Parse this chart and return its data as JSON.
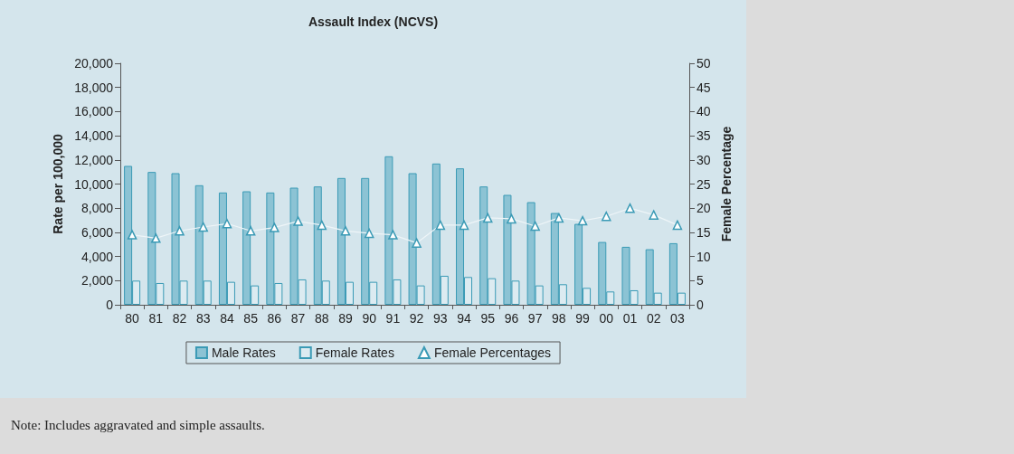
{
  "chart_data": {
    "type": "bar",
    "title": "Assault Index (NCVS)",
    "ylabel": "Rate per 100,000",
    "y2label": "Female Percentage",
    "categories": [
      "80",
      "81",
      "82",
      "83",
      "84",
      "85",
      "86",
      "87",
      "88",
      "89",
      "90",
      "91",
      "92",
      "93",
      "94",
      "95",
      "96",
      "97",
      "98",
      "99",
      "00",
      "01",
      "02",
      "03"
    ],
    "series": [
      {
        "name": "Male Rates",
        "color": "#8cc3d4",
        "values": [
          11500,
          11000,
          10900,
          9900,
          9300,
          9400,
          9300,
          9700,
          9800,
          10500,
          10500,
          12300,
          10900,
          11700,
          11300,
          9800,
          9100,
          8500,
          7600,
          6700,
          5200,
          4800,
          4600,
          5100
        ]
      },
      {
        "name": "Female Rates",
        "color": "#dcebf1",
        "values": [
          2000,
          1800,
          2000,
          2000,
          1900,
          1600,
          1800,
          2100,
          2000,
          1900,
          1900,
          2100,
          1600,
          2400,
          2300,
          2200,
          2000,
          1600,
          1700,
          1400,
          1100,
          1200,
          1000,
          1000
        ]
      },
      {
        "name": "Female Percentages",
        "type": "line",
        "axis": "y2",
        "color": "#3a9ab5",
        "marker": "triangle",
        "values": [
          14.5,
          13.8,
          15.3,
          16.1,
          16.8,
          15.3,
          16,
          17.3,
          16.5,
          15.3,
          14.8,
          14.5,
          12.8,
          16.5,
          16.5,
          18,
          17.8,
          16.3,
          18,
          17.4,
          18.3,
          20,
          18.6,
          16.5
        ]
      }
    ],
    "ylim": [
      0,
      20000
    ],
    "yticks": [
      0,
      {
        "value": 2000,
        "label": "2,000"
      },
      {
        "value": 4000,
        "label": "4,000"
      },
      {
        "value": 6000,
        "label": "6,000"
      },
      {
        "value": 8000,
        "label": "8,000"
      },
      {
        "value": 10000,
        "label": "10,000"
      },
      {
        "value": 12000,
        "label": "12,000"
      },
      {
        "value": 14000,
        "label": "14,000"
      },
      {
        "value": 16000,
        "label": "16,000"
      },
      {
        "value": 18000,
        "label": "18,000"
      },
      {
        "value": 20000,
        "label": "20,000"
      }
    ],
    "y2lim": [
      0,
      50
    ],
    "y2ticks": [
      0,
      5,
      10,
      15,
      20,
      25,
      30,
      35,
      40,
      45,
      50
    ],
    "legend": "bottom",
    "grid": false,
    "annotations": [
      "Note: Includes aggravated and simple assaults."
    ]
  }
}
